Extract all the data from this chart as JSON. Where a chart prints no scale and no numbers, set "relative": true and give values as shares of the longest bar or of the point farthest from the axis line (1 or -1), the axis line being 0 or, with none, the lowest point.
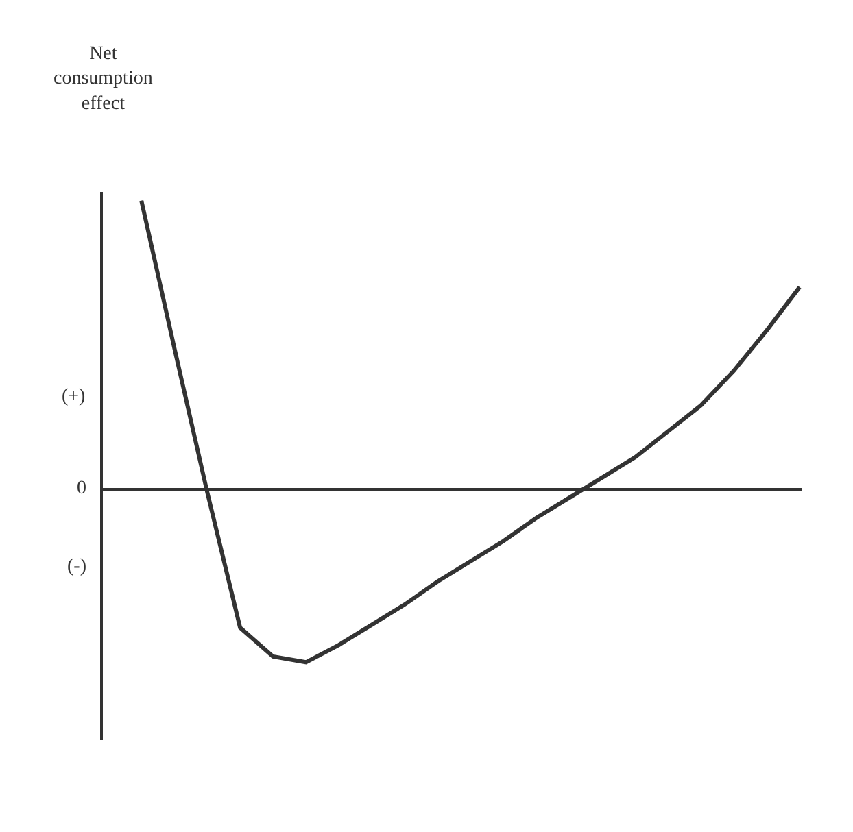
{
  "chart_data": {
    "type": "line",
    "relative": true,
    "ylabel": "Net consumption effect",
    "categories": [
      null,
      null,
      null,
      null,
      null,
      null,
      null,
      null,
      null,
      null,
      null,
      null,
      null,
      null,
      null,
      null,
      null,
      null,
      null,
      null,
      null
    ],
    "series": [
      {
        "color": "#333333",
        "values": [
          1.0,
          0.49,
          -0.01,
          -0.48,
          -0.58,
          -0.6,
          -0.54,
          -0.47,
          -0.4,
          -0.32,
          -0.25,
          -0.18,
          -0.1,
          -0.03,
          0.04,
          0.11,
          0.2,
          0.29,
          0.41,
          0.55,
          0.7
        ]
      }
    ],
    "annotations": [
      "(+)",
      "0",
      "(-)"
    ],
    "legend": false,
    "marker": "none",
    "line_style": "solid"
  }
}
